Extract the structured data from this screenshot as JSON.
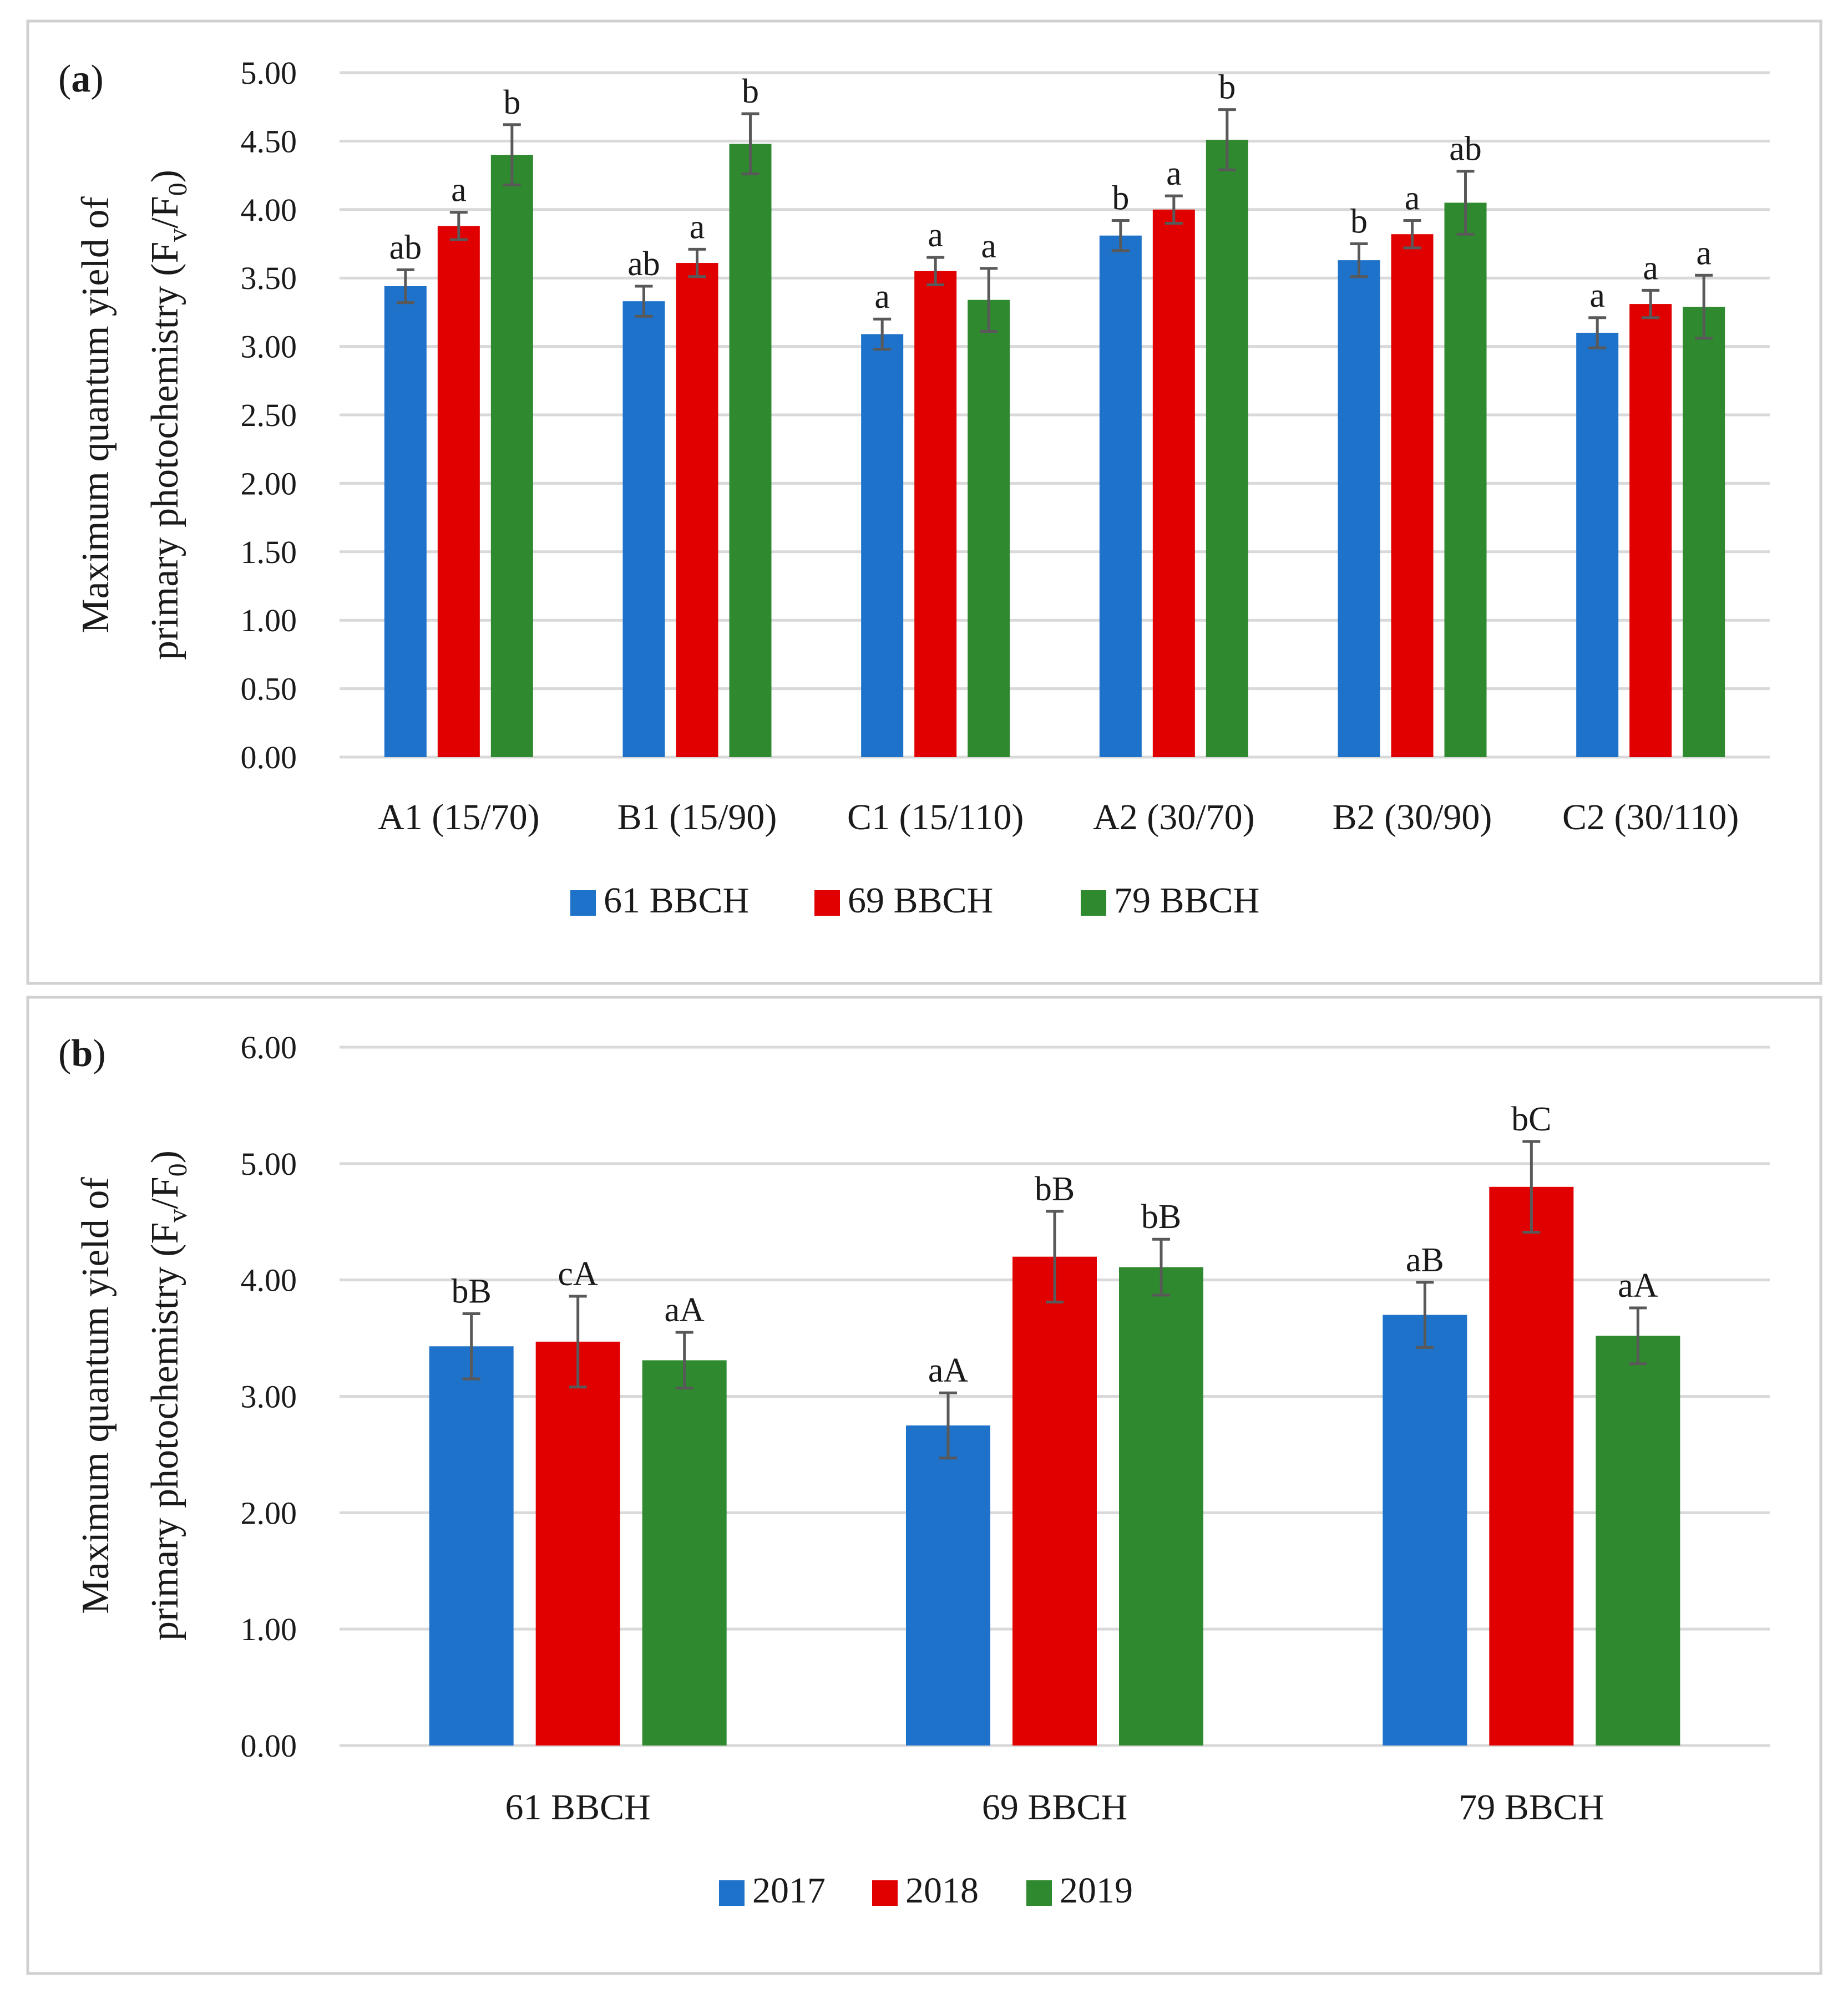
{
  "colors": {
    "blue": "#1f72c9",
    "red": "#e00000",
    "green": "#2f8a2f"
  },
  "chart_data": [
    {
      "panel": "a",
      "panel_label": {
        "open": "(",
        "letter": "a",
        "close": ")"
      },
      "type": "bar",
      "ylabel": {
        "line1": "Maximum quantum yield of",
        "line2_main": "primary photochemistry (F",
        "line2_sub1": "v",
        "line2_mid": "/F",
        "line2_sub2": "0",
        "line2_end": ")"
      },
      "ylim": [
        0,
        5
      ],
      "yticks": [
        "0.00",
        "0.50",
        "1.00",
        "1.50",
        "2.00",
        "2.50",
        "3.00",
        "3.50",
        "4.00",
        "4.50",
        "5.00"
      ],
      "categories": [
        "A1 (15/70)",
        "B1 (15/90)",
        "C1 (15/110)",
        "A2 (30/70)",
        "B2 (30/90)",
        "C2 (30/110)"
      ],
      "series": [
        {
          "name": "61 BBCH",
          "color": "#1f72c9",
          "values": [
            3.44,
            3.33,
            3.09,
            3.81,
            3.63,
            3.1
          ],
          "errors": [
            0.12,
            0.11,
            0.11,
            0.11,
            0.12,
            0.11
          ],
          "labels": [
            "ab",
            "ab",
            "a",
            "b",
            "b",
            "a"
          ]
        },
        {
          "name": "69 BBCH",
          "color": "#e00000",
          "values": [
            3.88,
            3.61,
            3.55,
            4.0,
            3.82,
            3.31
          ],
          "errors": [
            0.1,
            0.1,
            0.1,
            0.1,
            0.1,
            0.1
          ],
          "labels": [
            "a",
            "a",
            "a",
            "a",
            "a",
            "a"
          ]
        },
        {
          "name": "79 BBCH",
          "color": "#2f8a2f",
          "values": [
            4.4,
            4.48,
            3.34,
            4.51,
            4.05,
            3.29
          ],
          "errors": [
            0.22,
            0.22,
            0.23,
            0.22,
            0.23,
            0.23
          ],
          "labels": [
            "b",
            "b",
            "a",
            "b",
            "ab",
            "a"
          ]
        }
      ],
      "legend_position": "bottom"
    },
    {
      "panel": "b",
      "panel_label": {
        "open": "(",
        "letter": "b",
        "close": ")"
      },
      "type": "bar",
      "ylabel": {
        "line1": "Maximum quantum yield of",
        "line2_main": "primary photochemistry (F",
        "line2_sub1": "v",
        "line2_mid": "/F",
        "line2_sub2": "0",
        "line2_end": ")"
      },
      "ylim": [
        0,
        6
      ],
      "yticks": [
        "0.00",
        "1.00",
        "2.00",
        "3.00",
        "4.00",
        "5.00",
        "6.00"
      ],
      "categories": [
        "61 BBCH",
        "69 BBCH",
        "79 BBCH"
      ],
      "series": [
        {
          "name": "2017",
          "color": "#1f72c9",
          "values": [
            3.43,
            2.75,
            3.7
          ],
          "errors": [
            0.28,
            0.28,
            0.28
          ],
          "labels": [
            "bB",
            "aA",
            "aB"
          ]
        },
        {
          "name": "2018",
          "color": "#e00000",
          "values": [
            3.47,
            4.2,
            4.8
          ],
          "errors": [
            0.39,
            0.39,
            0.39
          ],
          "labels": [
            "cA",
            "bB",
            "bC"
          ]
        },
        {
          "name": "2019",
          "color": "#2f8a2f",
          "values": [
            3.31,
            4.11,
            3.52
          ],
          "errors": [
            0.24,
            0.24,
            0.24
          ],
          "labels": [
            "aA",
            "bB",
            "aA"
          ]
        }
      ],
      "legend_position": "bottom"
    }
  ]
}
